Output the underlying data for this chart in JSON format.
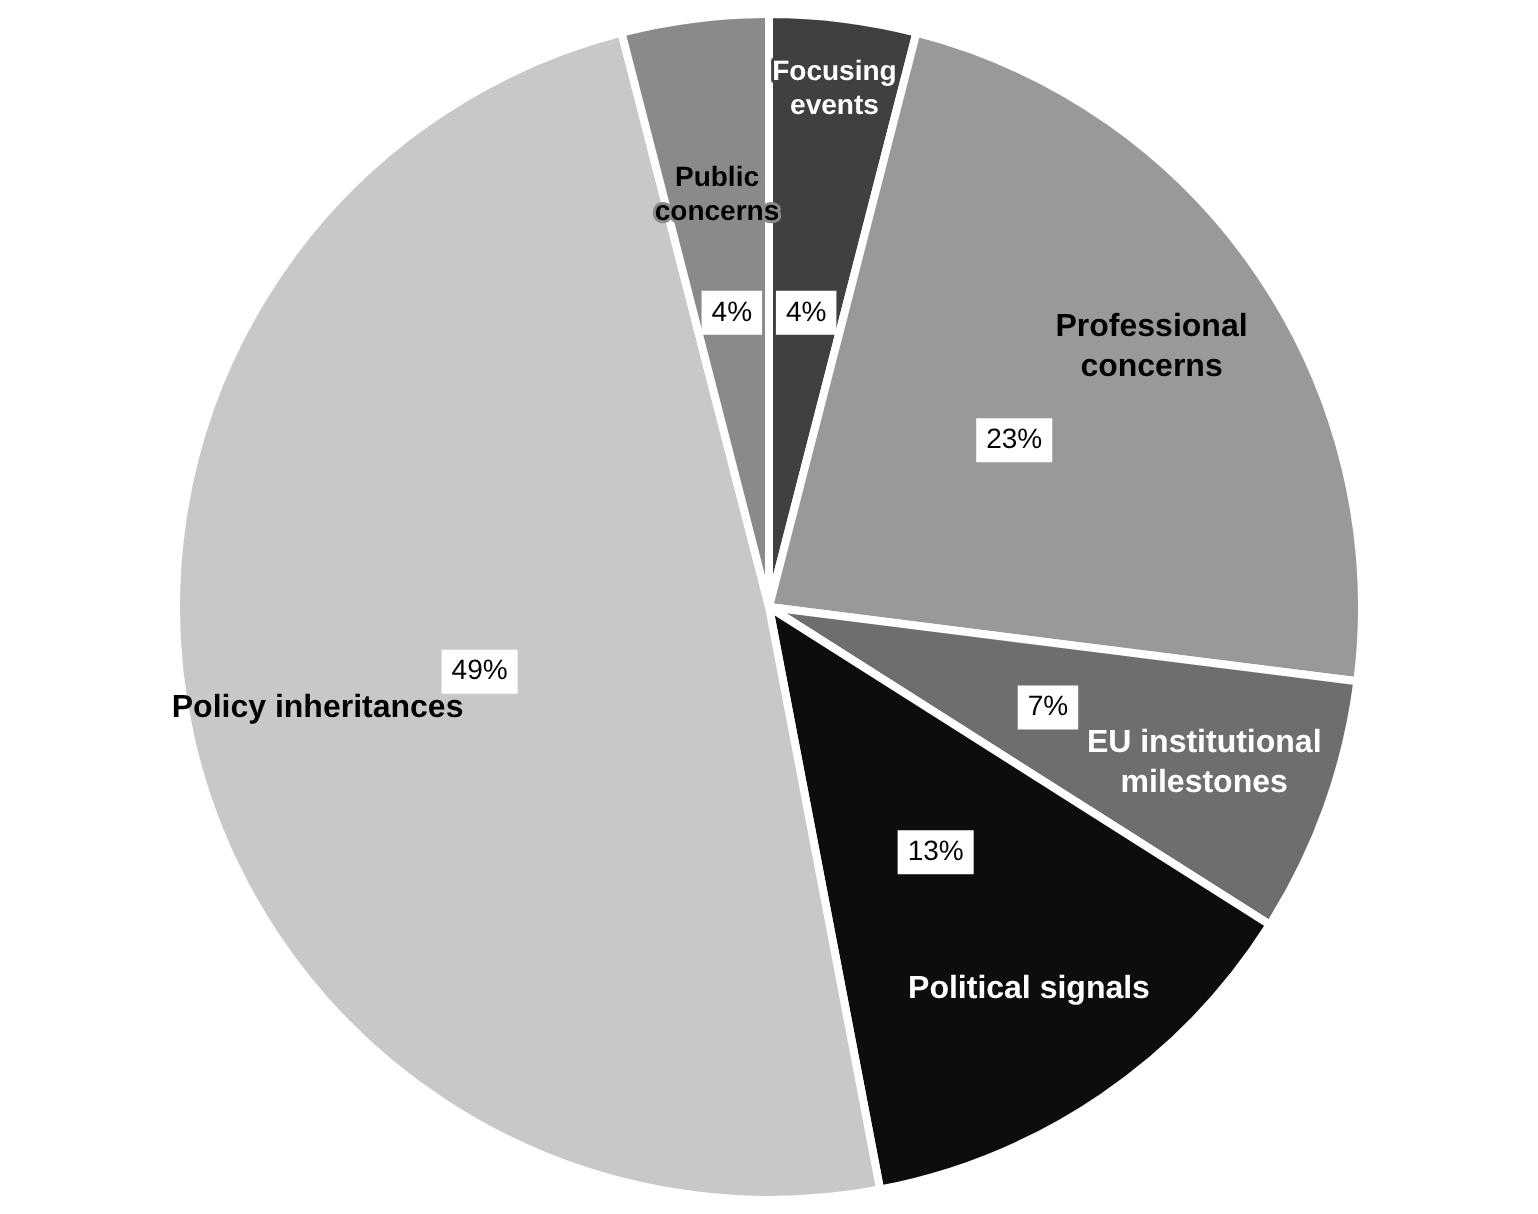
{
  "chart_data": {
    "type": "pie",
    "categories": [
      "Focusing events",
      "Professional concerns",
      "EU institutional milestones",
      "Political signals",
      "Policy inheritances",
      "Public concerns"
    ],
    "values": [
      4,
      23,
      7,
      13,
      49,
      4
    ],
    "colors": [
      "#404040",
      "#999999",
      "#6e6e6e",
      "#0d0d0d",
      "#c8c8c8",
      "#8a8a8a"
    ],
    "value_labels": [
      "4%",
      "23%",
      "7%",
      "13%",
      "49%",
      "4%"
    ],
    "legend": false
  }
}
